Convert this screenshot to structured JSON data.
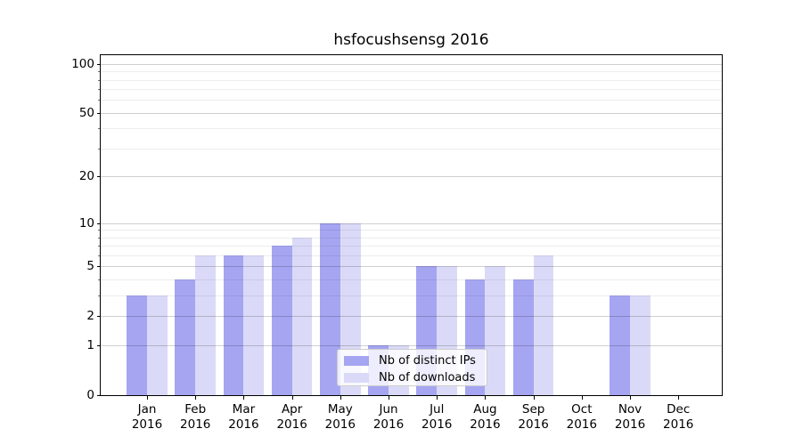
{
  "figure": {
    "background": "#ffffff",
    "axis_color": "#000000",
    "text_color": "#000000"
  },
  "chart_data": {
    "type": "bar",
    "title": "hsfocushsensg 2016",
    "categories": [
      "Jan",
      "Feb",
      "Mar",
      "Apr",
      "May",
      "Jun",
      "Jul",
      "Aug",
      "Sep",
      "Oct",
      "Nov",
      "Dec"
    ],
    "x_year": "2016",
    "series": [
      {
        "name": "Nb of distinct IPs",
        "color": "#a5a5f2",
        "values": [
          3,
          4,
          6,
          7,
          10,
          1,
          5,
          4,
          4,
          0,
          3,
          0
        ]
      },
      {
        "name": "Nb of downloads",
        "color": "#dadaf8",
        "values": [
          3,
          6,
          6,
          8,
          10,
          1,
          5,
          5,
          6,
          0,
          3,
          0
        ]
      }
    ],
    "y_scale": "log1p",
    "ylim": [
      0,
      113
    ],
    "xlim_index": [
      -0.96,
      11.9
    ],
    "bar_width_frac": 0.42,
    "y_major_ticks": [
      0,
      1,
      2,
      5,
      10,
      20,
      50,
      100
    ],
    "y_minor_ticks": [
      3,
      4,
      6,
      7,
      8,
      9,
      30,
      40,
      60,
      70,
      80,
      90
    ],
    "grid": {
      "on": true,
      "major_color": "rgba(0,0,0,0.19)",
      "minor_color": "rgba(0,0,0,0.07)",
      "grid_above_bars": true
    },
    "legend": {
      "position": "lower center",
      "background": "rgba(255,255,255,0.8)",
      "border_color": "#cccccc"
    }
  }
}
